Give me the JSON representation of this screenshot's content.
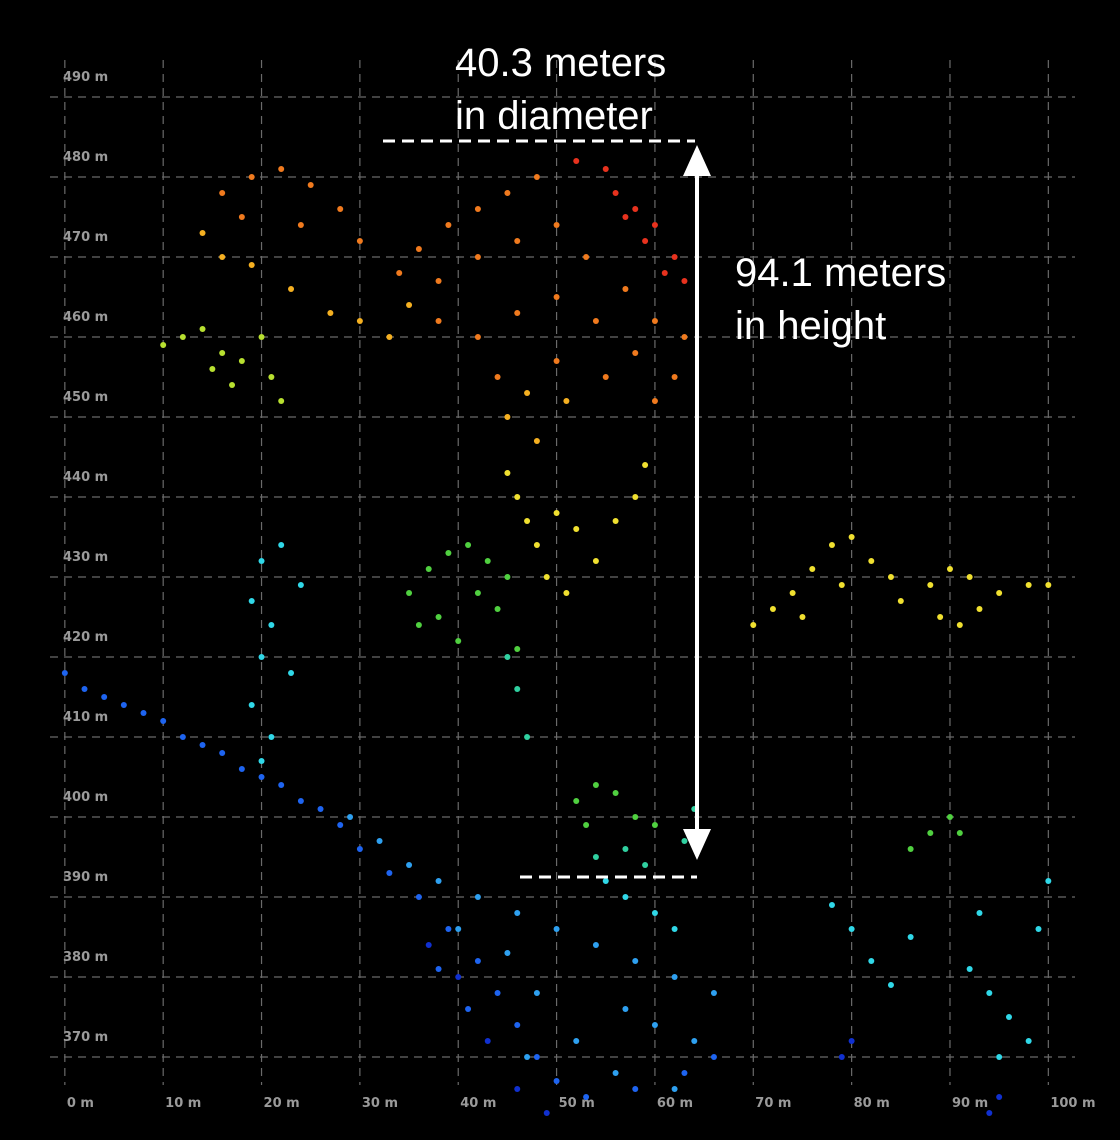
{
  "chart_data": {
    "type": "scatter",
    "xlim": [
      -1,
      102
    ],
    "ylim": [
      362,
      494
    ],
    "xticks": [
      {
        "value": 0,
        "label": "0 m"
      },
      {
        "value": 10,
        "label": "10 m"
      },
      {
        "value": 20,
        "label": "20 m"
      },
      {
        "value": 30,
        "label": "30 m"
      },
      {
        "value": 40,
        "label": "40 m"
      },
      {
        "value": 50,
        "label": "50 m"
      },
      {
        "value": 60,
        "label": "60 m"
      },
      {
        "value": 70,
        "label": "70 m"
      },
      {
        "value": 80,
        "label": "80 m"
      },
      {
        "value": 90,
        "label": "90 m"
      },
      {
        "value": 100,
        "label": "100 m"
      }
    ],
    "yticks": [
      {
        "value": 370,
        "label": "370 m"
      },
      {
        "value": 380,
        "label": "380 m"
      },
      {
        "value": 390,
        "label": "390 m"
      },
      {
        "value": 400,
        "label": "400 m"
      },
      {
        "value": 410,
        "label": "410 m"
      },
      {
        "value": 420,
        "label": "420 m"
      },
      {
        "value": 430,
        "label": "430 m"
      },
      {
        "value": 440,
        "label": "440 m"
      },
      {
        "value": 450,
        "label": "450 m"
      },
      {
        "value": 460,
        "label": "460 m"
      },
      {
        "value": 470,
        "label": "470 m"
      },
      {
        "value": 480,
        "label": "480 m"
      },
      {
        "value": 490,
        "label": "490 m"
      }
    ],
    "grid": true,
    "annotations": [
      {
        "lines": [
          "40.3 meters",
          "in diameter"
        ]
      },
      {
        "lines": [
          "94.1 meters",
          "in height"
        ]
      }
    ],
    "series": [
      {
        "color": "#e8321e",
        "x": [
          56,
          58,
          60,
          62,
          63,
          55,
          52,
          59,
          61,
          57
        ],
        "values": [
          478,
          476,
          474,
          470,
          467,
          481,
          482,
          472,
          468,
          475
        ]
      },
      {
        "color": "#f07a1e",
        "x": [
          48,
          45,
          42,
          39,
          36,
          34,
          38,
          42,
          46,
          50,
          53,
          57,
          60,
          63,
          62,
          58,
          54,
          50,
          46,
          42,
          38,
          44,
          50,
          55,
          60,
          16,
          19,
          22,
          25,
          28,
          30,
          18,
          24
        ],
        "values": [
          480,
          478,
          476,
          474,
          471,
          468,
          467,
          470,
          472,
          474,
          470,
          466,
          462,
          460,
          455,
          458,
          462,
          465,
          463,
          460,
          462,
          455,
          457,
          455,
          452,
          478,
          480,
          481,
          479,
          476,
          472,
          475,
          474
        ]
      },
      {
        "color": "#f5b021",
        "x": [
          45,
          48,
          51,
          47,
          14,
          16,
          19,
          23,
          27,
          30,
          35,
          33
        ],
        "values": [
          450,
          447,
          452,
          453,
          473,
          470,
          469,
          466,
          463,
          462,
          464,
          460
        ]
      },
      {
        "color": "#f0e030",
        "x": [
          45,
          46,
          47,
          48,
          52,
          54,
          56,
          58,
          59,
          50,
          49,
          51,
          70,
          72,
          74,
          76,
          78,
          80,
          82,
          84,
          79,
          75,
          85,
          88,
          90,
          92,
          95,
          98,
          100,
          93,
          89,
          91
        ],
        "values": [
          443,
          440,
          437,
          434,
          436,
          432,
          437,
          440,
          444,
          438,
          430,
          428,
          424,
          426,
          428,
          431,
          434,
          435,
          432,
          430,
          429,
          425,
          427,
          429,
          431,
          430,
          428,
          429,
          429,
          426,
          425,
          424
        ]
      },
      {
        "color": "#b8e030",
        "x": [
          10,
          12,
          14,
          16,
          18,
          20,
          21,
          22,
          15,
          17
        ],
        "values": [
          459,
          460,
          461,
          458,
          457,
          460,
          455,
          452,
          456,
          454
        ]
      },
      {
        "color": "#50d040",
        "x": [
          35,
          37,
          39,
          41,
          43,
          45,
          38,
          40,
          44,
          46,
          36,
          42,
          52,
          54,
          56,
          58,
          60,
          53,
          86,
          88,
          90,
          91
        ],
        "values": [
          428,
          431,
          433,
          434,
          432,
          430,
          425,
          422,
          426,
          421,
          424,
          428,
          402,
          404,
          403,
          400,
          399,
          399,
          396,
          398,
          400,
          398
        ]
      },
      {
        "color": "#30d0a0",
        "x": [
          57,
          59,
          54,
          64,
          63,
          47,
          46,
          45
        ],
        "values": [
          396,
          394,
          395,
          401,
          397,
          410,
          416,
          420
        ]
      },
      {
        "color": "#30d8e8",
        "x": [
          20,
          22,
          19,
          21,
          20,
          23,
          19,
          21,
          20,
          24,
          55,
          57,
          60,
          62,
          78,
          80,
          82,
          84,
          86,
          92,
          94,
          96,
          98,
          99,
          100,
          93,
          95
        ],
        "values": [
          432,
          434,
          427,
          424,
          420,
          418,
          414,
          410,
          407,
          429,
          392,
          390,
          388,
          386,
          389,
          386,
          382,
          379,
          385,
          381,
          378,
          375,
          372,
          386,
          392,
          388,
          370
        ]
      },
      {
        "color": "#2ea0f0",
        "x": [
          29,
          32,
          35,
          38,
          42,
          46,
          50,
          54,
          58,
          62,
          66,
          48,
          52,
          56,
          60,
          64,
          45,
          40,
          57,
          62,
          47
        ],
        "values": [
          400,
          397,
          394,
          392,
          390,
          388,
          386,
          384,
          382,
          380,
          378,
          378,
          372,
          368,
          374,
          372,
          383,
          386,
          376,
          366,
          370
        ]
      },
      {
        "color": "#1e64f0",
        "x": [
          0,
          2,
          4,
          6,
          8,
          10,
          12,
          14,
          16,
          18,
          20,
          22,
          24,
          26,
          28,
          30,
          33,
          36,
          39,
          42,
          44,
          46,
          48,
          50,
          53,
          58,
          63,
          66,
          38,
          41
        ],
        "values": [
          418,
          416,
          415,
          414,
          413,
          412,
          410,
          409,
          408,
          406,
          405,
          404,
          402,
          401,
          399,
          396,
          393,
          390,
          386,
          382,
          378,
          374,
          370,
          367,
          365,
          366,
          368,
          370,
          381,
          376
        ]
      },
      {
        "color": "#1030d0",
        "x": [
          37,
          40,
          43,
          46,
          49,
          79,
          80,
          94,
          95
        ],
        "values": [
          384,
          380,
          372,
          366,
          363,
          370,
          372,
          363,
          365
        ]
      }
    ]
  }
}
